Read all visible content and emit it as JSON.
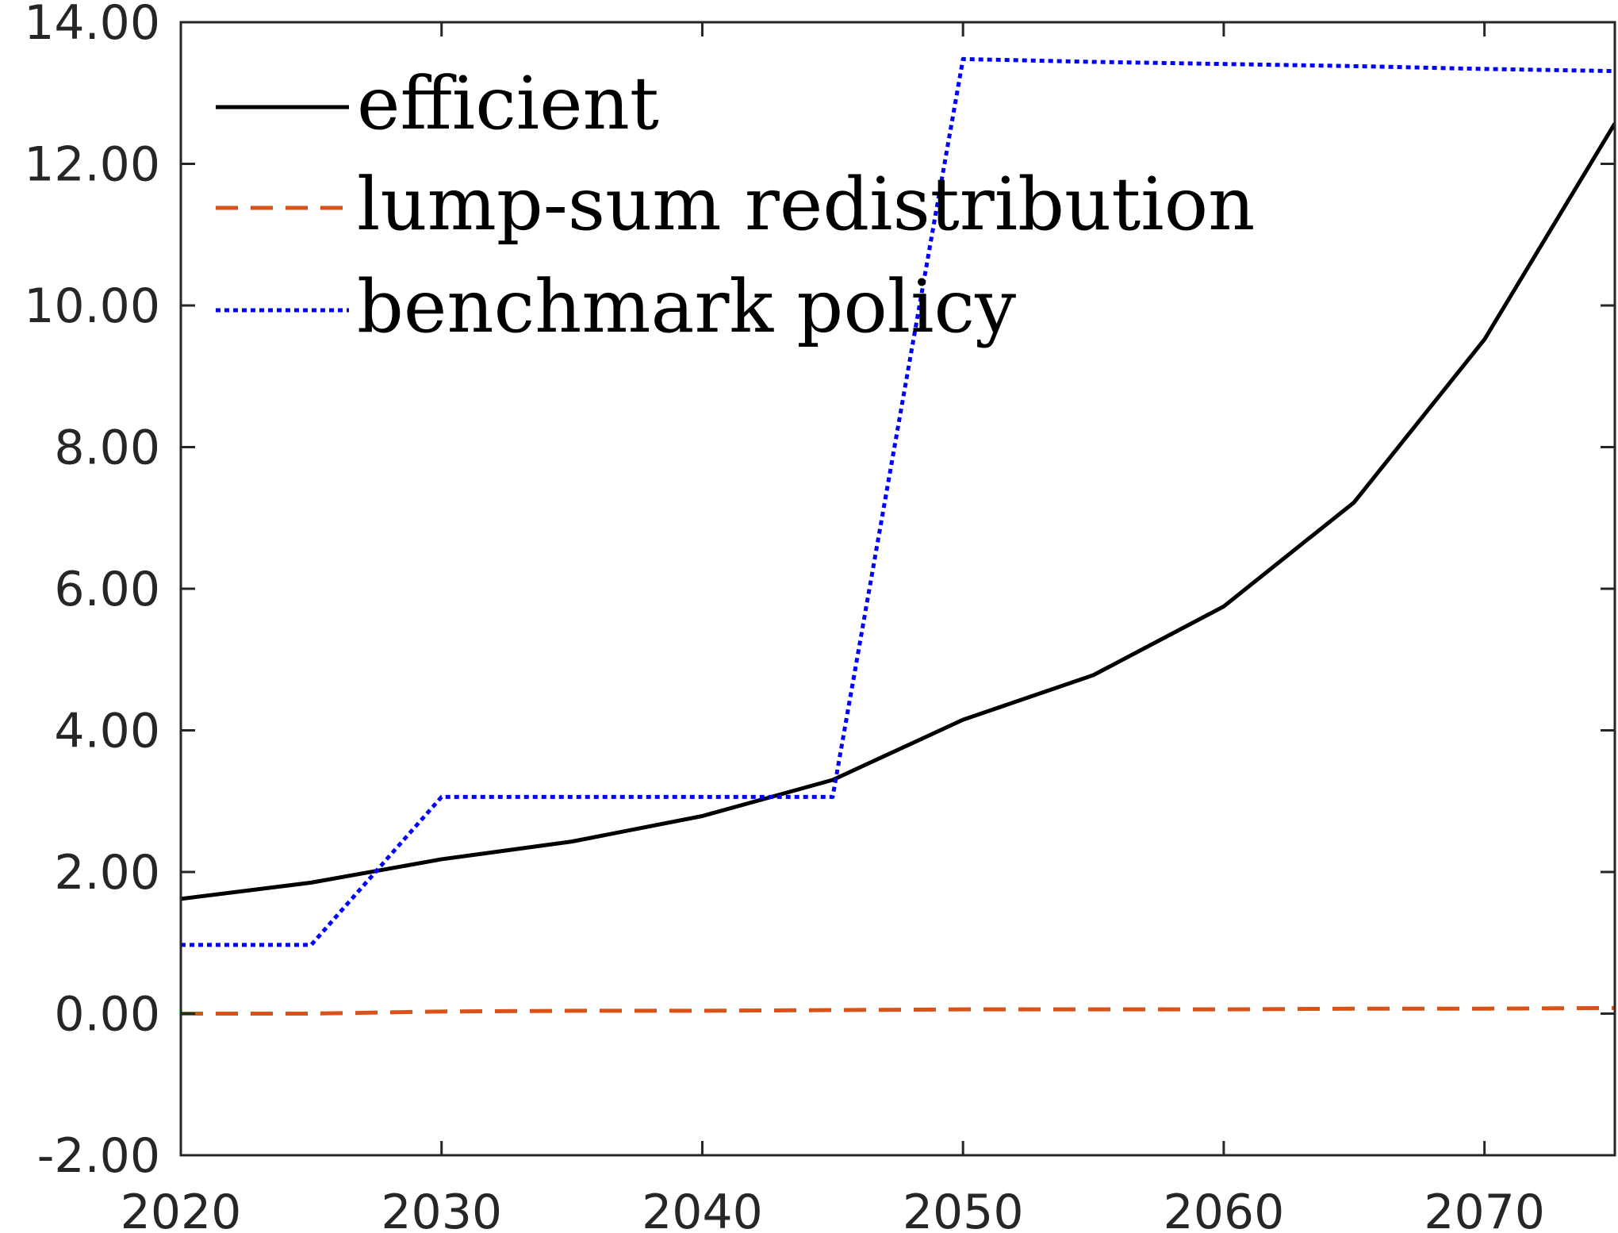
{
  "chart_data": {
    "type": "line",
    "title": "",
    "xlabel": "",
    "ylabel": "",
    "xlim": [
      2020,
      2075
    ],
    "ylim": [
      -2,
      14
    ],
    "xticks": [
      2020,
      2030,
      2040,
      2050,
      2060,
      2070
    ],
    "xtick_labels": [
      "2020",
      "2030",
      "2040",
      "2050",
      "2060",
      "2070"
    ],
    "yticks": [
      -2,
      0,
      2,
      4,
      6,
      8,
      10,
      12,
      14
    ],
    "ytick_labels": [
      "-2.00",
      "0.00",
      "2.00",
      "4.00",
      "6.00",
      "8.00",
      "10.00",
      "12.00",
      "14.00"
    ],
    "grid": false,
    "legend_position": "top-left",
    "series": [
      {
        "name": "efficient",
        "color": "#000000",
        "style": "solid",
        "x": [
          2020,
          2025,
          2030,
          2035,
          2040,
          2045,
          2050,
          2055,
          2060,
          2065,
          2070,
          2075
        ],
        "y": [
          1.62,
          1.85,
          2.18,
          2.43,
          2.79,
          3.3,
          4.15,
          4.78,
          5.75,
          7.22,
          9.52,
          12.57
        ]
      },
      {
        "name": "lump-sum redistribution",
        "color": "#D95319",
        "style": "dashed",
        "x": [
          2020,
          2025,
          2030,
          2035,
          2040,
          2045,
          2050,
          2055,
          2060,
          2065,
          2070,
          2075
        ],
        "y": [
          0.0,
          0.0,
          0.03,
          0.04,
          0.04,
          0.05,
          0.06,
          0.06,
          0.06,
          0.07,
          0.07,
          0.08
        ]
      },
      {
        "name": "benchmark policy",
        "color": "#0000FF",
        "style": "dotted",
        "x": [
          2020,
          2025,
          2030,
          2035,
          2040,
          2045,
          2050,
          2055,
          2060,
          2065,
          2070,
          2075
        ],
        "y": [
          0.97,
          0.97,
          3.06,
          3.06,
          3.06,
          3.06,
          13.48,
          13.44,
          13.41,
          13.38,
          13.34,
          13.31
        ]
      }
    ]
  }
}
